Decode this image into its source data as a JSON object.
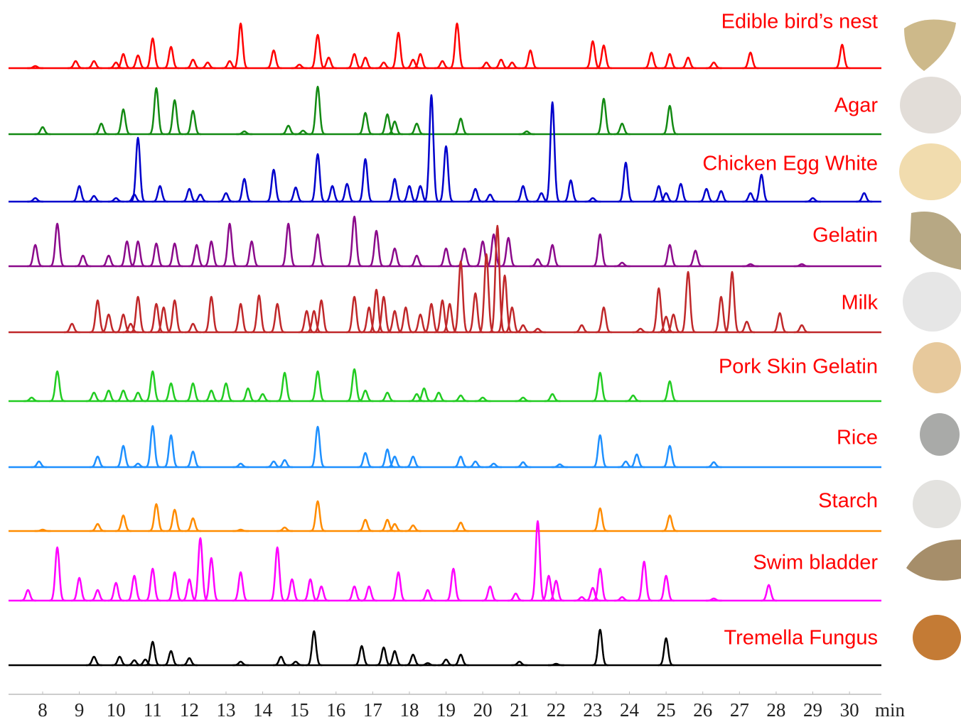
{
  "chart_data": {
    "type": "chromatogram",
    "x_label": "min",
    "xlim": [
      7.07,
      30.87
    ],
    "xticks": [
      8,
      9,
      10,
      11,
      12,
      13,
      14,
      15,
      16,
      17,
      18,
      19,
      20,
      21,
      22,
      23,
      24,
      25,
      26,
      27,
      28,
      29,
      30
    ],
    "ylim": [
      0,
      100
    ],
    "series": [
      {
        "name": "Edible bird’s nest",
        "color": "#ff0000",
        "x": [
          7.8,
          8.9,
          9.4,
          10.0,
          10.2,
          10.6,
          11.0,
          11.5,
          12.1,
          12.5,
          13.1,
          13.4,
          14.3,
          15.0,
          15.5,
          15.8,
          16.5,
          16.8,
          17.3,
          17.7,
          18.1,
          18.3,
          18.9,
          19.3,
          20.1,
          20.5,
          20.8,
          21.3,
          23.0,
          23.3,
          24.6,
          25.1,
          25.6,
          26.3,
          27.3,
          29.8
        ],
        "values": [
          3,
          10,
          10,
          8,
          20,
          18,
          42,
          30,
          12,
          8,
          10,
          63,
          25,
          5,
          47,
          15,
          20,
          15,
          8,
          50,
          12,
          20,
          10,
          63,
          8,
          12,
          8,
          25,
          38,
          32,
          22,
          20,
          15,
          8,
          22,
          33
        ]
      },
      {
        "name": "Agar",
        "color": "#138a13",
        "x": [
          8.0,
          9.6,
          10.2,
          11.1,
          11.6,
          12.1,
          13.5,
          14.7,
          15.1,
          15.5,
          16.8,
          17.4,
          17.6,
          18.2,
          19.4,
          21.2,
          23.3,
          23.8,
          25.1
        ],
        "values": [
          10,
          15,
          35,
          65,
          48,
          33,
          4,
          12,
          5,
          67,
          30,
          28,
          18,
          15,
          22,
          4,
          50,
          15,
          40
        ]
      },
      {
        "name": "Chicken Egg White",
        "color": "#0000cc",
        "x": [
          7.8,
          9.0,
          9.4,
          10.0,
          10.5,
          10.6,
          11.2,
          12.0,
          12.3,
          13.0,
          13.5,
          14.3,
          14.9,
          15.5,
          15.9,
          16.3,
          16.8,
          17.6,
          18.0,
          18.3,
          18.6,
          19.0,
          19.8,
          20.2,
          21.1,
          21.6,
          21.9,
          22.4,
          23.0,
          23.9,
          24.8,
          25.0,
          25.4,
          26.1,
          26.5,
          27.3,
          27.6,
          29.0,
          30.4
        ],
        "values": [
          5,
          22,
          8,
          5,
          10,
          90,
          22,
          18,
          10,
          12,
          32,
          45,
          20,
          67,
          22,
          25,
          60,
          32,
          22,
          22,
          150,
          78,
          18,
          10,
          22,
          12,
          140,
          30,
          5,
          55,
          22,
          12,
          25,
          18,
          15,
          12,
          38,
          5,
          12
        ]
      },
      {
        "name": "Gelatin",
        "color": "#8b0a8b",
        "x": [
          7.8,
          8.4,
          9.1,
          9.8,
          10.3,
          10.6,
          11.1,
          11.6,
          12.2,
          12.6,
          13.1,
          13.7,
          14.7,
          15.5,
          16.5,
          17.1,
          17.6,
          18.2,
          19.0,
          19.5,
          20.0,
          20.3,
          20.7,
          21.5,
          21.9,
          23.2,
          23.8,
          25.1,
          25.8,
          27.3,
          28.7
        ],
        "values": [
          30,
          60,
          15,
          15,
          35,
          35,
          32,
          32,
          30,
          35,
          60,
          35,
          60,
          45,
          70,
          50,
          25,
          15,
          25,
          25,
          35,
          45,
          40,
          10,
          30,
          45,
          5,
          30,
          22,
          3,
          3
        ]
      },
      {
        "name": "Milk",
        "color": "#c0282a",
        "x": [
          8.8,
          9.5,
          9.8,
          10.2,
          10.4,
          10.6,
          11.1,
          11.3,
          11.6,
          12.1,
          12.6,
          13.4,
          13.9,
          14.4,
          15.2,
          15.4,
          15.6,
          16.5,
          16.9,
          17.1,
          17.3,
          17.6,
          17.9,
          18.3,
          18.6,
          18.9,
          19.1,
          19.4,
          19.8,
          20.1,
          20.4,
          20.6,
          20.8,
          21.1,
          21.5,
          22.7,
          23.3,
          24.3,
          24.8,
          25.0,
          25.2,
          25.6,
          26.5,
          26.8,
          27.2,
          28.1,
          28.7
        ],
        "values": [
          12,
          45,
          25,
          25,
          12,
          50,
          40,
          35,
          45,
          12,
          50,
          40,
          52,
          40,
          30,
          30,
          45,
          50,
          35,
          60,
          50,
          30,
          35,
          25,
          40,
          45,
          40,
          100,
          55,
          110,
          150,
          80,
          35,
          10,
          5,
          10,
          35,
          5,
          62,
          22,
          25,
          85,
          50,
          85,
          15,
          27,
          10
        ]
      },
      {
        "name": "Pork Skin Gelatin",
        "color": "#22cc22",
        "x": [
          7.7,
          8.4,
          9.4,
          9.8,
          10.2,
          10.6,
          11.0,
          11.5,
          12.1,
          12.6,
          13.0,
          13.6,
          14.0,
          14.6,
          15.5,
          16.5,
          16.8,
          17.4,
          18.2,
          18.4,
          18.8,
          19.4,
          20.0,
          21.1,
          21.9,
          23.2,
          24.1,
          25.1
        ],
        "values": [
          5,
          42,
          12,
          15,
          15,
          12,
          42,
          25,
          25,
          15,
          25,
          18,
          10,
          40,
          42,
          45,
          15,
          12,
          10,
          18,
          12,
          8,
          5,
          5,
          10,
          40,
          8,
          28
        ]
      },
      {
        "name": "Rice",
        "color": "#1e90ff",
        "x": [
          7.9,
          9.5,
          10.2,
          10.6,
          11.0,
          11.5,
          12.1,
          13.4,
          14.3,
          14.6,
          15.5,
          16.8,
          17.4,
          17.6,
          18.1,
          19.4,
          19.8,
          20.3,
          21.1,
          22.1,
          23.2,
          23.9,
          24.2,
          25.1,
          26.3
        ],
        "values": [
          8,
          15,
          30,
          5,
          58,
          45,
          22,
          5,
          8,
          10,
          57,
          20,
          25,
          15,
          15,
          15,
          8,
          5,
          7,
          4,
          45,
          8,
          18,
          30,
          7
        ]
      },
      {
        "name": "Starch",
        "color": "#ff8c00",
        "x": [
          8.0,
          9.5,
          10.2,
          11.1,
          11.6,
          12.1,
          13.4,
          14.6,
          15.5,
          16.8,
          17.4,
          17.6,
          18.1,
          19.4,
          23.2,
          25.1
        ],
        "values": [
          2,
          10,
          22,
          38,
          30,
          18,
          2,
          5,
          42,
          16,
          16,
          10,
          8,
          12,
          32,
          22
        ]
      },
      {
        "name": "Swim bladder",
        "color": "#ff00ff",
        "x": [
          7.6,
          8.4,
          9.0,
          9.5,
          10.0,
          10.5,
          11.0,
          11.6,
          12.0,
          12.3,
          12.6,
          13.4,
          14.4,
          14.8,
          15.3,
          15.6,
          16.5,
          16.9,
          17.7,
          18.5,
          19.2,
          20.2,
          20.9,
          21.5,
          21.8,
          22.0,
          22.7,
          23.0,
          23.2,
          23.8,
          24.4,
          25.0,
          26.3,
          27.8
        ],
        "values": [
          15,
          75,
          32,
          15,
          25,
          35,
          45,
          40,
          30,
          88,
          60,
          40,
          75,
          30,
          30,
          20,
          20,
          20,
          40,
          15,
          45,
          20,
          10,
          112,
          35,
          28,
          5,
          18,
          45,
          5,
          55,
          35,
          3,
          22
        ]
      },
      {
        "name": "Tremella Fungus",
        "color": "#000000",
        "x": [
          9.4,
          10.1,
          10.5,
          10.8,
          11.0,
          11.5,
          12.0,
          13.4,
          14.5,
          14.9,
          15.4,
          16.7,
          17.3,
          17.6,
          18.1,
          18.5,
          19.0,
          19.4,
          21.0,
          22.0,
          23.2,
          25.0
        ],
        "values": [
          12,
          12,
          7,
          8,
          33,
          20,
          10,
          5,
          12,
          5,
          48,
          27,
          25,
          20,
          15,
          3,
          8,
          15,
          5,
          2,
          50,
          38
        ]
      }
    ]
  }
}
